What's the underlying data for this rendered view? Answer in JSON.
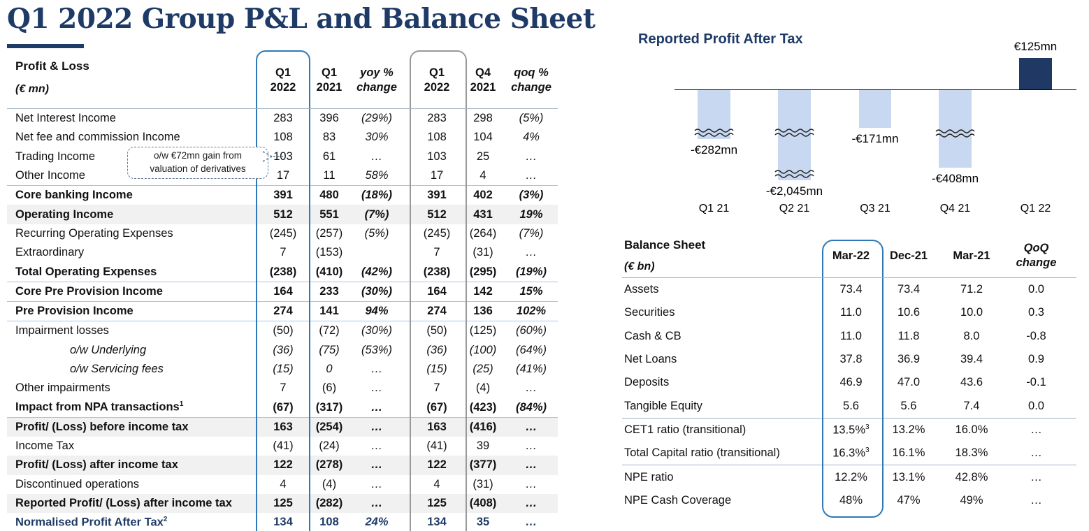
{
  "title": "Q1 2022 Group P&L and Balance Sheet",
  "pnl": {
    "header": {
      "line1": "Profit & Loss",
      "line2": "(€ mn)"
    },
    "columns": [
      {
        "lines": [
          "Q1",
          "2022"
        ],
        "italic": false
      },
      {
        "lines": [
          "Q1",
          "2021"
        ],
        "italic": false
      },
      {
        "lines": [
          "yoy %",
          "change"
        ],
        "italic": true
      },
      {
        "lines": [
          "Q1",
          "2022"
        ],
        "italic": false
      },
      {
        "lines": [
          "Q4",
          "2021"
        ],
        "italic": false
      },
      {
        "lines": [
          "qoq %",
          "change"
        ],
        "italic": true
      }
    ],
    "callout": {
      "line1": "o/w €72mn gain from",
      "line2": "valuation of derivatives"
    },
    "rows": [
      {
        "label": "Net Interest Income",
        "values": [
          "283",
          "396",
          "(29%)",
          "283",
          "298",
          "(5%)"
        ]
      },
      {
        "label": "Net fee and commission Income",
        "values": [
          "108",
          "83",
          "30%",
          "108",
          "104",
          "4%"
        ]
      },
      {
        "label": "Trading Income",
        "values": [
          "103",
          "61",
          "…",
          "103",
          "25",
          "…"
        ]
      },
      {
        "label": "Other Income",
        "values": [
          "17",
          "11",
          "58%",
          "17",
          "4",
          "…"
        ]
      },
      {
        "label": "Core banking Income",
        "bold": true,
        "topline": true,
        "values": [
          "391",
          "480",
          "(18%)",
          "391",
          "402",
          "(3%)"
        ]
      },
      {
        "label": "Operating Income",
        "bold": true,
        "shade": true,
        "values": [
          "512",
          "551",
          "(7%)",
          "512",
          "431",
          "19%"
        ]
      },
      {
        "label": "Recurring Operating Expenses",
        "values": [
          "(245)",
          "(257)",
          "(5%)",
          "(245)",
          "(264)",
          "(7%)"
        ]
      },
      {
        "label": "Extraordinary",
        "values": [
          "7",
          "(153)",
          "",
          "7",
          "(31)",
          "…"
        ]
      },
      {
        "label": "Total Operating Expenses",
        "bold": true,
        "values": [
          "(238)",
          "(410)",
          "(42%)",
          "(238)",
          "(295)",
          "(19%)"
        ]
      },
      {
        "label": "Core Pre Provision Income",
        "bold": true,
        "topline": true,
        "values": [
          "164",
          "233",
          "(30%)",
          "164",
          "142",
          "15%"
        ]
      },
      {
        "label": "Pre Provision Income",
        "bold": true,
        "topline": true,
        "values": [
          "274",
          "141",
          "94%",
          "274",
          "136",
          "102%"
        ]
      },
      {
        "label": "Impairment losses",
        "topline": true,
        "values": [
          "(50)",
          "(72)",
          "(30%)",
          "(50)",
          "(125)",
          "(60%)"
        ]
      },
      {
        "label": "o/w Underlying",
        "italic": true,
        "indent": true,
        "values": [
          "(36)",
          "(75)",
          "(53%)",
          "(36)",
          "(100)",
          "(64%)"
        ]
      },
      {
        "label": "o/w Servicing fees",
        "italic": true,
        "indent": true,
        "values": [
          "(15)",
          "0",
          "…",
          "(15)",
          "(25)",
          "(41%)"
        ]
      },
      {
        "label": "Other impairments",
        "values": [
          "7",
          "(6)",
          "…",
          "7",
          "(4)",
          "…"
        ]
      },
      {
        "label": "Impact from NPA transactions",
        "label_sup": "1",
        "bold": true,
        "values": [
          "(67)",
          "(317)",
          "…",
          "(67)",
          "(423)",
          "(84%)"
        ]
      },
      {
        "label": "Profit/ (Loss) before income tax",
        "bold": true,
        "shade": true,
        "topline": true,
        "values": [
          "163",
          "(254)",
          "…",
          "163",
          "(416)",
          "…"
        ]
      },
      {
        "label": "Income Tax",
        "values": [
          "(41)",
          "(24)",
          "…",
          "(41)",
          "39",
          "…"
        ]
      },
      {
        "label": "Profit/ (Loss) after income tax",
        "bold": true,
        "shade": true,
        "values": [
          "122",
          "(278)",
          "…",
          "122",
          "(377)",
          "…"
        ]
      },
      {
        "label": "Discontinued operations",
        "values": [
          "4",
          "(4)",
          "…",
          "4",
          "(31)",
          "…"
        ]
      },
      {
        "label": "Reported Profit/ (Loss) after income tax",
        "bold": true,
        "shade": true,
        "values": [
          "125",
          "(282)",
          "…",
          "125",
          "(408)",
          "…"
        ]
      },
      {
        "label": "Normalised Profit After Tax",
        "label_sup": "2",
        "bold": true,
        "navy": true,
        "values": [
          "134",
          "108",
          "24%",
          "134",
          "35",
          "…"
        ]
      }
    ]
  },
  "chart_data": {
    "type": "bar",
    "title": "Reported Profit After Tax",
    "unit": "€ mn",
    "categories": [
      "Q1 21",
      "Q2 21",
      "Q3 21",
      "Q4 21",
      "Q1 22"
    ],
    "values": [
      -282,
      -2045,
      -171,
      -408,
      125
    ],
    "labels": [
      "-€282mn",
      "-€2,045mn",
      "-€171mn",
      "-€408mn",
      "€125mn"
    ],
    "baseline": 0,
    "bars_not_to_scale": true,
    "axis_breaks_per_bar": [
      1,
      2,
      0,
      1,
      0
    ],
    "colors": {
      "negative_bar": "#C7D8F0",
      "positive_bar": "#1F3864",
      "axis": "#000000"
    }
  },
  "balance_sheet": {
    "header": {
      "line1": "Balance Sheet",
      "line2": "(€ bn)"
    },
    "columns": [
      {
        "lines": [
          "Mar-22"
        ],
        "italic": false
      },
      {
        "lines": [
          "Dec-21"
        ],
        "italic": false
      },
      {
        "lines": [
          "Mar-21"
        ],
        "italic": false
      },
      {
        "lines": [
          "QoQ",
          "change"
        ],
        "italic": true
      }
    ],
    "rows": [
      {
        "label": "Assets",
        "values": [
          "73.4",
          "73.4",
          "71.2",
          "0.0"
        ]
      },
      {
        "label": "Securities",
        "values": [
          "11.0",
          "10.6",
          "10.0",
          "0.3"
        ]
      },
      {
        "label": "Cash & CB",
        "values": [
          "11.0",
          "11.8",
          "8.0",
          "-0.8"
        ]
      },
      {
        "label": "Net Loans",
        "values": [
          "37.8",
          "36.9",
          "39.4",
          "0.9"
        ]
      },
      {
        "label": "Deposits",
        "values": [
          "46.9",
          "47.0",
          "43.6",
          "-0.1"
        ]
      },
      {
        "label": "Tangible Equity",
        "values": [
          "5.6",
          "5.6",
          "7.4",
          "0.0"
        ]
      },
      {
        "label": "CET1 ratio (transitional)",
        "v0_sup": "3",
        "topline": true,
        "values": [
          "13.5%",
          "13.2%",
          "16.0%",
          "…"
        ]
      },
      {
        "label": "Total Capital ratio (transitional)",
        "v0_sup": "3",
        "values": [
          "16.3%",
          "16.1%",
          "18.3%",
          "…"
        ]
      },
      {
        "label": "NPE ratio",
        "topline": true,
        "values": [
          "12.2%",
          "13.1%",
          "42.8%",
          "…"
        ]
      },
      {
        "label": "NPE Cash Coverage",
        "values": [
          "48%",
          "47%",
          "49%",
          "…"
        ]
      }
    ]
  }
}
